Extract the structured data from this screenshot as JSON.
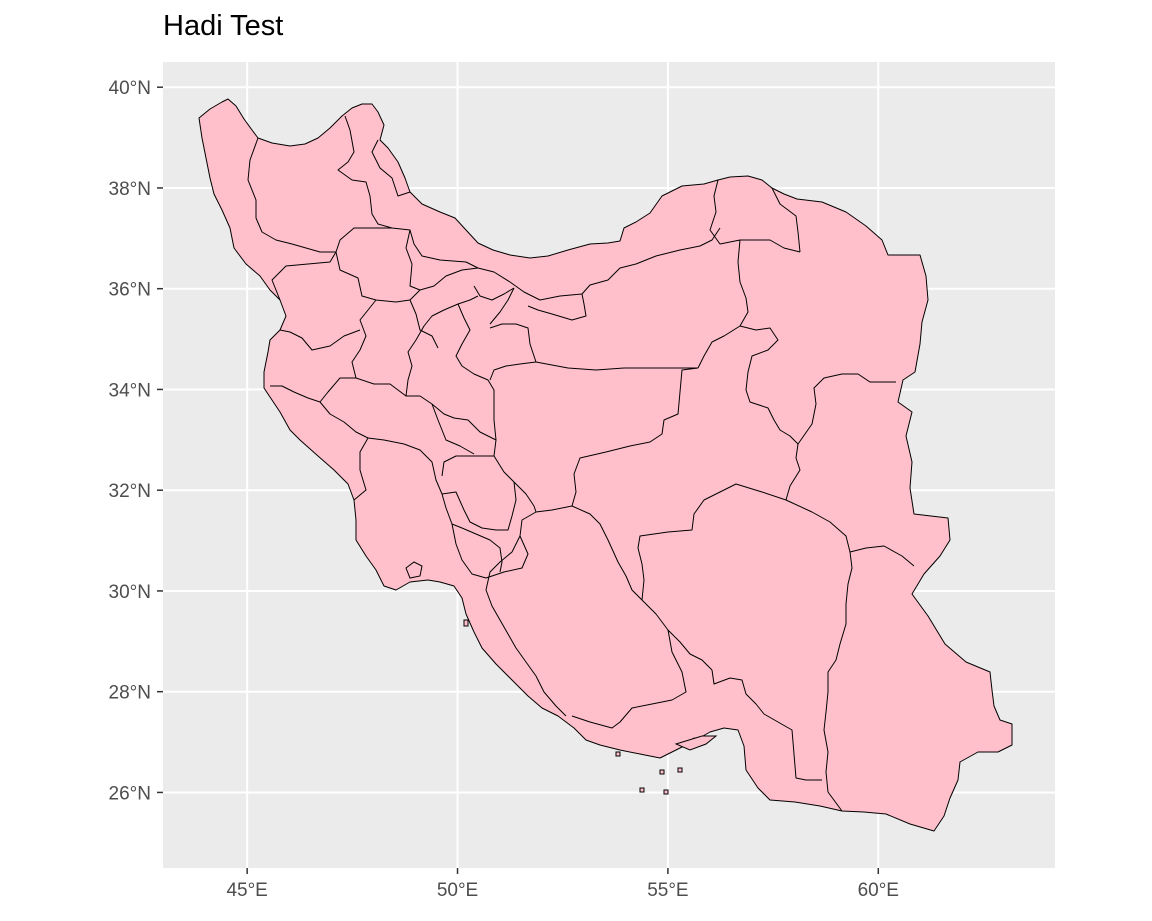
{
  "title": "Hadi Test",
  "colors": {
    "panel_background": "#ebebeb",
    "grid": "#ffffff",
    "region_fill": "#ffc0cb",
    "region_stroke": "#000000",
    "tick_text": "#4d4d4d"
  },
  "axes": {
    "x_ticks": [
      {
        "value": 45,
        "label": "45°E"
      },
      {
        "value": 50,
        "label": "50°E"
      },
      {
        "value": 55,
        "label": "55°E"
      },
      {
        "value": 60,
        "label": "60°E"
      }
    ],
    "y_ticks": [
      {
        "value": 40,
        "label": "40°N"
      },
      {
        "value": 38,
        "label": "38°N"
      },
      {
        "value": 36,
        "label": "36°N"
      },
      {
        "value": 34,
        "label": "34°N"
      },
      {
        "value": 32,
        "label": "32°N"
      },
      {
        "value": 30,
        "label": "30°N"
      },
      {
        "value": 28,
        "label": "28°N"
      },
      {
        "value": 26,
        "label": "26°N"
      }
    ],
    "x_range": [
      43.0,
      64.2
    ],
    "y_range": [
      24.5,
      40.5
    ]
  },
  "map": {
    "country": "Iran",
    "geometry": "provincial boundaries"
  }
}
